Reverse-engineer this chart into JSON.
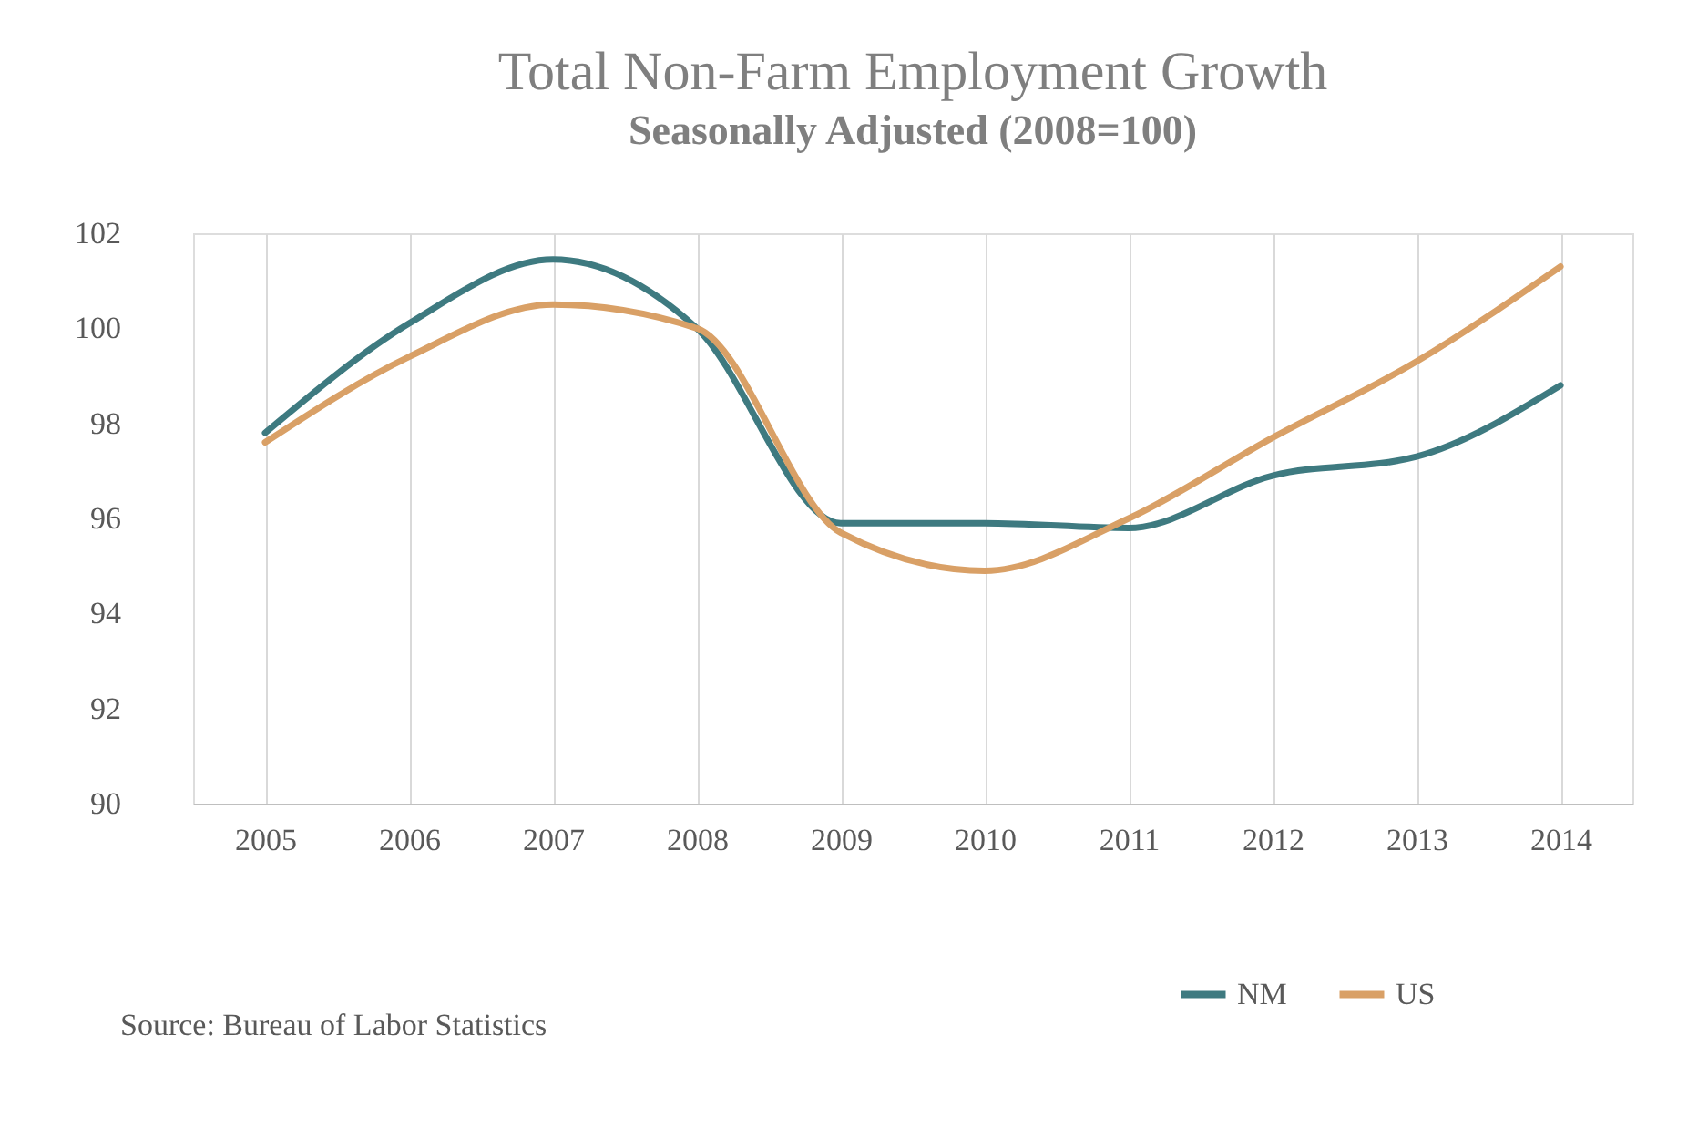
{
  "chart_data": {
    "type": "line",
    "title": "Total Non-Farm Employment Growth",
    "subtitle": "Seasonally Adjusted (2008=100)",
    "categories": [
      "2005",
      "2006",
      "2007",
      "2008",
      "2009",
      "2010",
      "2011",
      "2012",
      "2013",
      "2014"
    ],
    "series": [
      {
        "name": "NM",
        "color": "#3e7a80",
        "values": [
          97.8,
          100.1,
          101.45,
          100.0,
          95.9,
          95.9,
          95.8,
          96.9,
          97.3,
          98.8
        ]
      },
      {
        "name": "US",
        "color": "#d9a066",
        "values": [
          97.6,
          99.4,
          100.5,
          100.0,
          95.7,
          94.9,
          96.0,
          97.7,
          99.3,
          101.3
        ]
      }
    ],
    "ylim": [
      90,
      102
    ],
    "yticks": [
      90,
      92,
      94,
      96,
      98,
      100,
      102
    ],
    "grid": "x",
    "legend": "bottom right",
    "annotations": [
      "Source: Bureau of Labor Statistics"
    ]
  }
}
